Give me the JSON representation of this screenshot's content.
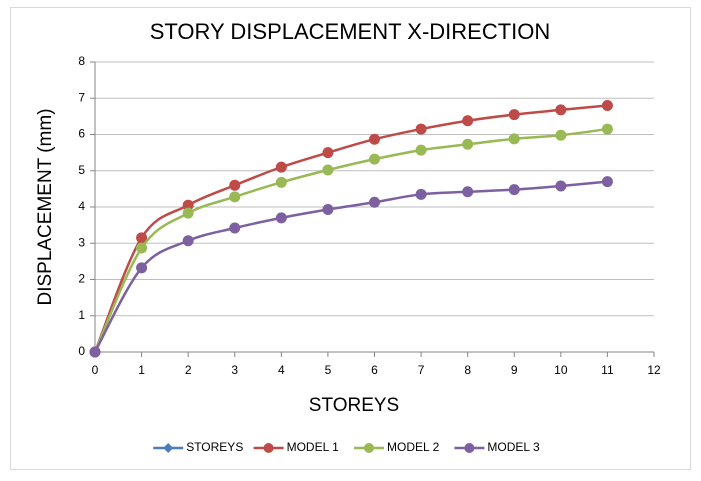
{
  "chart_data": {
    "type": "line",
    "title": "STORY DISPLACEMENT X-DIRECTION",
    "x_label": "STOREYS",
    "y_label": "DISPLACEMENT (mm)",
    "x": [
      0,
      1,
      2,
      3,
      4,
      5,
      6,
      7,
      8,
      9,
      10,
      11
    ],
    "series": [
      {
        "name": "STOREYS",
        "color": "#4a7ebb",
        "values": [
          null,
          null,
          null,
          null,
          null,
          null,
          null,
          null,
          null,
          null,
          null,
          null
        ]
      },
      {
        "name": "MODEL 1",
        "color": "#be4b48",
        "values": [
          0,
          3.15,
          4.05,
          4.6,
          5.1,
          5.5,
          5.87,
          6.15,
          6.38,
          6.55,
          6.68,
          6.8
        ]
      },
      {
        "name": "MODEL 2",
        "color": "#98b954",
        "values": [
          0,
          2.87,
          3.83,
          4.28,
          4.68,
          5.02,
          5.32,
          5.57,
          5.73,
          5.88,
          5.98,
          6.15
        ]
      },
      {
        "name": "MODEL 3",
        "color": "#7d60a0",
        "values": [
          0,
          2.32,
          3.07,
          3.42,
          3.7,
          3.93,
          4.13,
          4.35,
          4.42,
          4.48,
          4.58,
          4.7
        ]
      }
    ],
    "xlim": [
      0,
      12
    ],
    "xticks": [
      0,
      1,
      2,
      3,
      4,
      5,
      6,
      7,
      8,
      9,
      10,
      11,
      12
    ],
    "ylim": [
      0,
      8
    ],
    "yticks": [
      0,
      1,
      2,
      3,
      4,
      5,
      6,
      7,
      8
    ],
    "grid": true,
    "smooth": true,
    "legend": "bottom"
  }
}
